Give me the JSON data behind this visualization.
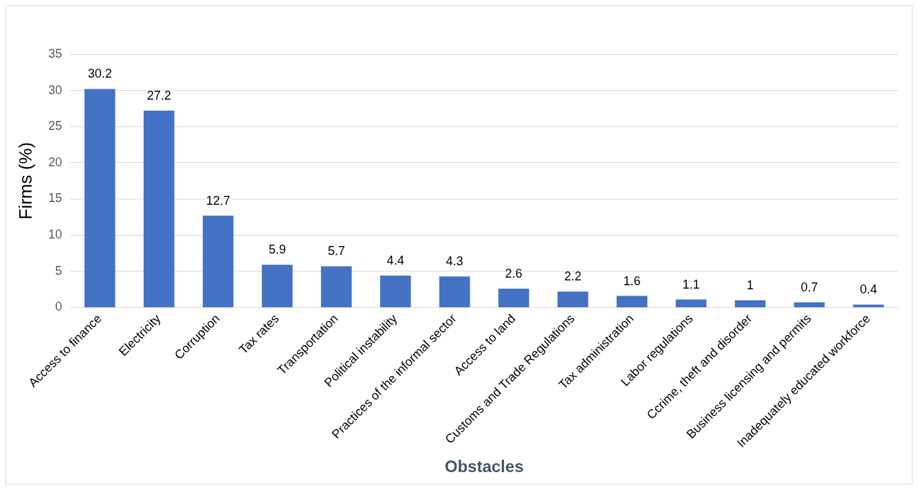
{
  "chart_data": {
    "type": "bar",
    "xlabel": "Obstacles",
    "ylabel": "Firms (%)",
    "categories": [
      "Access to finance",
      "Electricity",
      "Corruption",
      "Tax rates",
      "Transportation",
      "Political instability",
      "Practices of the informal sector",
      "Access to land",
      "Customs and Trade Regulations",
      "Tax administration",
      "Labor regulations",
      "Ccrime, theft and disorder",
      "Business licensing and permits",
      "Inadequately educated workforce"
    ],
    "values": [
      30.2,
      27.2,
      12.7,
      5.9,
      5.7,
      4.4,
      4.3,
      2.6,
      2.2,
      1.6,
      1.1,
      1,
      0.7,
      0.4
    ],
    "color": "#4472c4",
    "ylim": [
      0,
      35
    ],
    "yticks": [
      0,
      5,
      10,
      15,
      20,
      25,
      30,
      35
    ],
    "grid": "y",
    "data_labels": true,
    "legend": false
  }
}
